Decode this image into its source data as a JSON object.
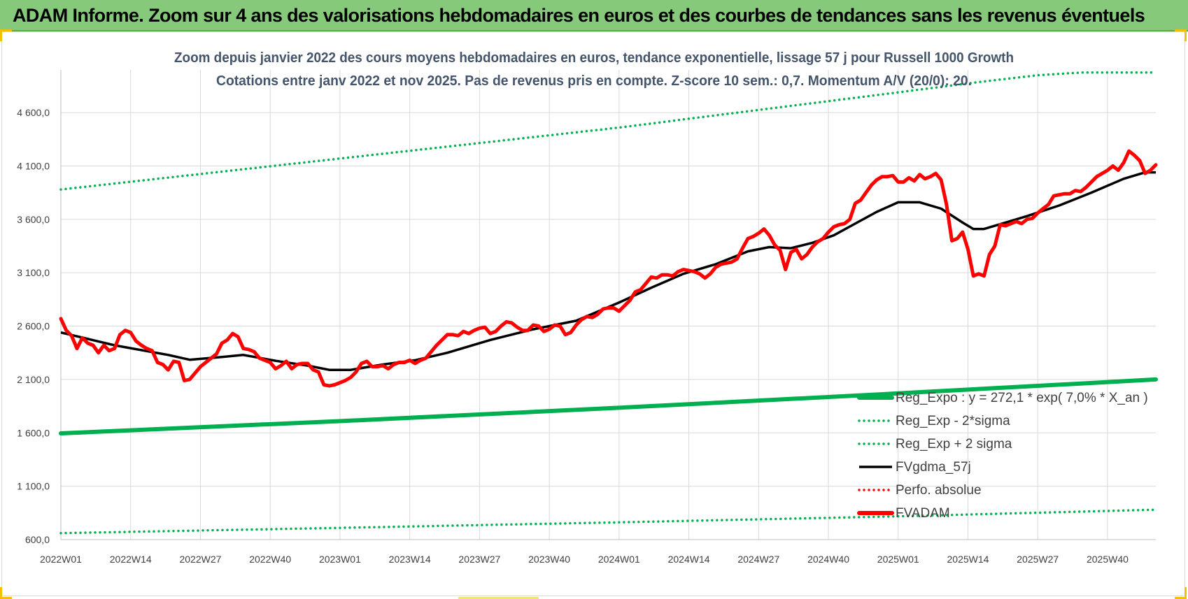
{
  "banner": {
    "title": "ADAM Informe. Zoom sur 4 ans des valorisations hebdomadaires en euros et des courbes de tendances sans les revenus éventuels"
  },
  "colors": {
    "banner": "#86c97a",
    "trend": "#00b050",
    "fv_adam": "#ff0000",
    "fv_gdma": "#000000",
    "grid": "#d9d9d9"
  },
  "chart_data": {
    "type": "line",
    "title": "Zoom depuis janvier 2022 des cours moyens hebdomadaires en euros, tendance exponentielle, lissage 57 j pour Russell 1000 Growth",
    "subtitle": "Cotations entre janv 2022 et nov 2025. Pas de revenus pris en compte. Z-score 10 sem.: 0,7. Momentum A/V (20/0): 20.",
    "xlabel": "",
    "ylabel": "",
    "ylim": [
      600,
      5000
    ],
    "grid": true,
    "legend_position": "right",
    "y_ticks": [
      "600,0",
      "1 100,0",
      "1 600,0",
      "2 100,0",
      "2 600,0",
      "3 100,0",
      "3 600,0",
      "4 100,0",
      "4 600,0"
    ],
    "y_tick_values": [
      600,
      1100,
      1600,
      2100,
      2600,
      3100,
      3600,
      4100,
      4600
    ],
    "x_ticks": [
      "2022W01",
      "2022W14",
      "2022W27",
      "2022W40",
      "2023W01",
      "2023W14",
      "2023W27",
      "2023W40",
      "2024W01",
      "2024W14",
      "2024W27",
      "2024W40",
      "2025W01",
      "2025W14",
      "2025W27",
      "2025W40"
    ],
    "x_tick_weeks": [
      0,
      13,
      26,
      39,
      52,
      65,
      78,
      91,
      104,
      117,
      130,
      143,
      156,
      169,
      182,
      195
    ],
    "total_weeks": 204,
    "series": [
      {
        "name": "Reg_Expo : y = 272,1 * exp( 7,0% *  X_an )",
        "style": "thick-solid",
        "color": "#00b050",
        "points": [
          [
            0,
            1595
          ],
          [
            52,
            1710
          ],
          [
            104,
            1835
          ],
          [
            156,
            1970
          ],
          [
            204,
            2100
          ]
        ]
      },
      {
        "name": "Reg_Exp - 2*sigma",
        "style": "dotted",
        "color": "#00b050",
        "points": [
          [
            0,
            660
          ],
          [
            52,
            710
          ],
          [
            104,
            762
          ],
          [
            156,
            818
          ],
          [
            204,
            880
          ]
        ]
      },
      {
        "name": "Reg_Exp + 2 sigma",
        "style": "dotted",
        "color": "#00b050",
        "points": [
          [
            0,
            3880
          ],
          [
            52,
            4170
          ],
          [
            104,
            4460
          ],
          [
            156,
            4790
          ],
          [
            170,
            4880
          ],
          [
            182,
            4950
          ],
          [
            190,
            4975
          ],
          [
            204,
            4975
          ]
        ]
      },
      {
        "name": "FVgdma_57j",
        "style": "solid",
        "color": "#000000",
        "points": [
          [
            0,
            2540
          ],
          [
            10,
            2420
          ],
          [
            20,
            2330
          ],
          [
            24,
            2285
          ],
          [
            30,
            2310
          ],
          [
            34,
            2330
          ],
          [
            40,
            2275
          ],
          [
            46,
            2230
          ],
          [
            50,
            2190
          ],
          [
            54,
            2190
          ],
          [
            60,
            2240
          ],
          [
            66,
            2280
          ],
          [
            72,
            2350
          ],
          [
            80,
            2470
          ],
          [
            88,
            2570
          ],
          [
            96,
            2650
          ],
          [
            104,
            2820
          ],
          [
            110,
            2960
          ],
          [
            116,
            3090
          ],
          [
            122,
            3180
          ],
          [
            128,
            3300
          ],
          [
            132,
            3340
          ],
          [
            136,
            3330
          ],
          [
            140,
            3380
          ],
          [
            144,
            3450
          ],
          [
            148,
            3560
          ],
          [
            152,
            3670
          ],
          [
            156,
            3760
          ],
          [
            160,
            3760
          ],
          [
            164,
            3700
          ],
          [
            168,
            3570
          ],
          [
            170,
            3510
          ],
          [
            172,
            3510
          ],
          [
            176,
            3570
          ],
          [
            180,
            3630
          ],
          [
            186,
            3730
          ],
          [
            192,
            3850
          ],
          [
            198,
            3980
          ],
          [
            202,
            4040
          ],
          [
            204,
            4040
          ]
        ]
      },
      {
        "name": "Perfo. absolue",
        "style": "dotted",
        "color": "#ff0000",
        "points": []
      },
      {
        "name": "FVADAM",
        "style": "thick-solid",
        "color": "#ff0000",
        "points": [
          [
            0,
            2670
          ],
          [
            1,
            2560
          ],
          [
            2,
            2510
          ],
          [
            3,
            2390
          ],
          [
            4,
            2490
          ],
          [
            5,
            2440
          ],
          [
            6,
            2420
          ],
          [
            7,
            2350
          ],
          [
            8,
            2420
          ],
          [
            9,
            2370
          ],
          [
            10,
            2390
          ],
          [
            11,
            2520
          ],
          [
            12,
            2560
          ],
          [
            13,
            2540
          ],
          [
            14,
            2460
          ],
          [
            15,
            2420
          ],
          [
            16,
            2390
          ],
          [
            17,
            2370
          ],
          [
            18,
            2260
          ],
          [
            19,
            2240
          ],
          [
            20,
            2190
          ],
          [
            21,
            2270
          ],
          [
            22,
            2260
          ],
          [
            23,
            2090
          ],
          [
            24,
            2100
          ],
          [
            25,
            2160
          ],
          [
            26,
            2220
          ],
          [
            27,
            2260
          ],
          [
            28,
            2300
          ],
          [
            29,
            2340
          ],
          [
            30,
            2440
          ],
          [
            31,
            2470
          ],
          [
            32,
            2530
          ],
          [
            33,
            2500
          ],
          [
            34,
            2390
          ],
          [
            35,
            2380
          ],
          [
            36,
            2360
          ],
          [
            37,
            2300
          ],
          [
            38,
            2280
          ],
          [
            39,
            2260
          ],
          [
            40,
            2200
          ],
          [
            41,
            2230
          ],
          [
            42,
            2270
          ],
          [
            43,
            2200
          ],
          [
            44,
            2240
          ],
          [
            45,
            2250
          ],
          [
            46,
            2250
          ],
          [
            47,
            2190
          ],
          [
            48,
            2170
          ],
          [
            49,
            2050
          ],
          [
            50,
            2040
          ],
          [
            51,
            2050
          ],
          [
            52,
            2070
          ],
          [
            53,
            2090
          ],
          [
            54,
            2120
          ],
          [
            55,
            2170
          ],
          [
            56,
            2250
          ],
          [
            57,
            2270
          ],
          [
            58,
            2220
          ],
          [
            59,
            2220
          ],
          [
            60,
            2230
          ],
          [
            61,
            2200
          ],
          [
            62,
            2240
          ],
          [
            63,
            2260
          ],
          [
            64,
            2260
          ],
          [
            65,
            2280
          ],
          [
            66,
            2250
          ],
          [
            67,
            2280
          ],
          [
            68,
            2300
          ],
          [
            69,
            2360
          ],
          [
            70,
            2420
          ],
          [
            71,
            2470
          ],
          [
            72,
            2520
          ],
          [
            73,
            2520
          ],
          [
            74,
            2510
          ],
          [
            75,
            2550
          ],
          [
            76,
            2530
          ],
          [
            77,
            2560
          ],
          [
            78,
            2580
          ],
          [
            79,
            2590
          ],
          [
            80,
            2530
          ],
          [
            81,
            2550
          ],
          [
            82,
            2600
          ],
          [
            83,
            2640
          ],
          [
            84,
            2630
          ],
          [
            85,
            2590
          ],
          [
            86,
            2560
          ],
          [
            87,
            2560
          ],
          [
            88,
            2610
          ],
          [
            89,
            2600
          ],
          [
            90,
            2550
          ],
          [
            91,
            2570
          ],
          [
            92,
            2610
          ],
          [
            93,
            2600
          ],
          [
            94,
            2520
          ],
          [
            95,
            2540
          ],
          [
            96,
            2610
          ],
          [
            97,
            2660
          ],
          [
            98,
            2690
          ],
          [
            99,
            2680
          ],
          [
            100,
            2710
          ],
          [
            101,
            2760
          ],
          [
            102,
            2770
          ],
          [
            103,
            2770
          ],
          [
            104,
            2740
          ],
          [
            105,
            2790
          ],
          [
            106,
            2840
          ],
          [
            107,
            2920
          ],
          [
            108,
            2940
          ],
          [
            109,
            3000
          ],
          [
            110,
            3060
          ],
          [
            111,
            3050
          ],
          [
            112,
            3080
          ],
          [
            113,
            3080
          ],
          [
            114,
            3070
          ],
          [
            115,
            3110
          ],
          [
            116,
            3130
          ],
          [
            117,
            3120
          ],
          [
            118,
            3110
          ],
          [
            119,
            3090
          ],
          [
            120,
            3050
          ],
          [
            121,
            3090
          ],
          [
            122,
            3150
          ],
          [
            123,
            3180
          ],
          [
            124,
            3190
          ],
          [
            125,
            3200
          ],
          [
            126,
            3230
          ],
          [
            127,
            3330
          ],
          [
            128,
            3420
          ],
          [
            129,
            3440
          ],
          [
            130,
            3470
          ],
          [
            131,
            3510
          ],
          [
            132,
            3450
          ],
          [
            133,
            3360
          ],
          [
            134,
            3310
          ],
          [
            135,
            3130
          ],
          [
            136,
            3290
          ],
          [
            137,
            3320
          ],
          [
            138,
            3230
          ],
          [
            139,
            3270
          ],
          [
            140,
            3340
          ],
          [
            141,
            3390
          ],
          [
            142,
            3420
          ],
          [
            143,
            3480
          ],
          [
            144,
            3530
          ],
          [
            145,
            3550
          ],
          [
            146,
            3560
          ],
          [
            147,
            3600
          ],
          [
            148,
            3750
          ],
          [
            149,
            3780
          ],
          [
            150,
            3850
          ],
          [
            151,
            3920
          ],
          [
            152,
            3970
          ],
          [
            153,
            4000
          ],
          [
            154,
            4000
          ],
          [
            155,
            4010
          ],
          [
            156,
            3950
          ],
          [
            157,
            3950
          ],
          [
            158,
            3990
          ],
          [
            159,
            3960
          ],
          [
            160,
            4020
          ],
          [
            161,
            3980
          ],
          [
            162,
            4000
          ],
          [
            163,
            4030
          ],
          [
            164,
            3970
          ],
          [
            165,
            3740
          ],
          [
            166,
            3400
          ],
          [
            167,
            3420
          ],
          [
            168,
            3480
          ],
          [
            169,
            3320
          ],
          [
            170,
            3070
          ],
          [
            171,
            3090
          ],
          [
            172,
            3070
          ],
          [
            173,
            3270
          ],
          [
            174,
            3350
          ],
          [
            175,
            3550
          ],
          [
            176,
            3540
          ],
          [
            177,
            3560
          ],
          [
            178,
            3580
          ],
          [
            179,
            3560
          ],
          [
            180,
            3600
          ],
          [
            181,
            3610
          ],
          [
            182,
            3660
          ],
          [
            183,
            3700
          ],
          [
            184,
            3740
          ],
          [
            185,
            3820
          ],
          [
            186,
            3830
          ],
          [
            187,
            3840
          ],
          [
            188,
            3840
          ],
          [
            189,
            3870
          ],
          [
            190,
            3860
          ],
          [
            191,
            3900
          ],
          [
            192,
            3950
          ],
          [
            193,
            4000
          ],
          [
            194,
            4030
          ],
          [
            195,
            4060
          ],
          [
            196,
            4100
          ],
          [
            197,
            4060
          ],
          [
            198,
            4130
          ],
          [
            199,
            4240
          ],
          [
            200,
            4200
          ],
          [
            201,
            4150
          ],
          [
            202,
            4030
          ],
          [
            203,
            4060
          ],
          [
            204,
            4110
          ]
        ]
      }
    ]
  }
}
